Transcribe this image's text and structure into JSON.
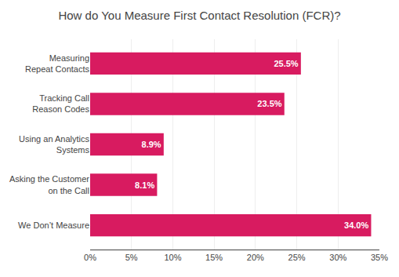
{
  "chart_data": {
    "type": "bar",
    "orientation": "horizontal",
    "title": "How do You Measure First Contact Resolution (FCR)?",
    "categories": [
      "We Don’t Measure",
      "Asking the Customer\non the Call",
      "Using an Analytics\nSystems",
      "Tracking Call\nReason Codes",
      "Measuring\nRepeat Contacts"
    ],
    "values": [
      34.0,
      8.1,
      8.9,
      23.5,
      25.5
    ],
    "value_labels": [
      "34.0%",
      "8.1%",
      "8.9%",
      "23.5%",
      "25.5%"
    ],
    "data_labels": true,
    "color": "#d81b60",
    "xlim": [
      0,
      35
    ],
    "xticks": [
      {
        "value": 0,
        "label": "0%"
      },
      {
        "value": 5,
        "label": "5%"
      },
      {
        "value": 10,
        "label": "10%"
      },
      {
        "value": 15,
        "label": "15%"
      },
      {
        "value": 20,
        "label": "20%"
      },
      {
        "value": 25,
        "label": "25%"
      },
      {
        "value": 30,
        "label": "30%"
      },
      {
        "value": 35,
        "label": "35%"
      }
    ],
    "grid": true
  }
}
